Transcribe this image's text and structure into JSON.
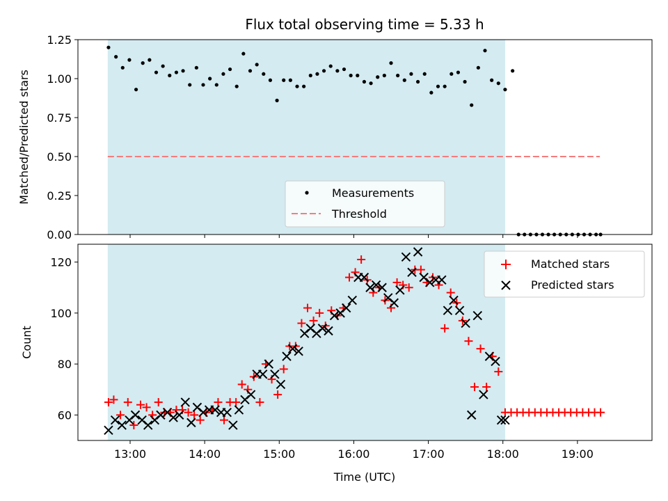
{
  "chart_data": [
    {
      "type": "scatter",
      "title": "Flux total observing time = 5.33 h",
      "ylabel": "Matched/Predicted stars",
      "xlabel": "",
      "ylim": [
        0,
        1.25
      ],
      "yticks": [
        0.0,
        0.25,
        0.5,
        0.75,
        1.0,
        1.25
      ],
      "ytick_labels": [
        "0.00",
        "0.25",
        "0.50",
        "0.75",
        "1.00",
        "1.25"
      ],
      "xlim": [
        12.3,
        20.0
      ],
      "shaded_span": {
        "start": 12.7,
        "end": 18.03
      },
      "series": [
        {
          "name": "Measurements",
          "color": "#000000",
          "x": [
            12.71,
            12.81,
            12.9,
            12.99,
            13.08,
            13.17,
            13.26,
            13.35,
            13.44,
            13.53,
            13.62,
            13.71,
            13.8,
            13.89,
            13.98,
            14.07,
            14.16,
            14.25,
            14.34,
            14.43,
            14.52,
            14.61,
            14.7,
            14.79,
            14.88,
            14.97,
            15.06,
            15.15,
            15.24,
            15.33,
            15.42,
            15.51,
            15.6,
            15.69,
            15.78,
            15.87,
            15.96,
            16.05,
            16.14,
            16.23,
            16.32,
            16.41,
            16.5,
            16.59,
            16.68,
            16.77,
            16.86,
            16.95,
            17.04,
            17.13,
            17.22,
            17.31,
            17.4,
            17.49,
            17.58,
            17.67,
            17.76,
            17.85,
            17.94,
            18.03,
            18.13,
            18.21,
            18.29,
            18.37,
            18.45,
            18.53,
            18.61,
            18.69,
            18.77,
            18.85,
            18.93,
            19.01,
            19.09,
            19.17,
            19.25,
            19.31
          ],
          "y": [
            1.2,
            1.14,
            1.07,
            1.12,
            0.93,
            1.1,
            1.12,
            1.04,
            1.08,
            1.02,
            1.04,
            1.05,
            0.96,
            1.07,
            0.96,
            1.0,
            0.96,
            1.03,
            1.06,
            0.95,
            1.16,
            1.05,
            1.09,
            1.03,
            0.99,
            0.86,
            0.99,
            0.99,
            0.95,
            0.95,
            1.02,
            1.03,
            1.05,
            1.08,
            1.05,
            1.06,
            1.02,
            1.02,
            0.98,
            0.97,
            1.01,
            1.02,
            1.1,
            1.02,
            0.99,
            1.03,
            0.98,
            1.03,
            0.91,
            0.95,
            0.95,
            1.03,
            1.04,
            0.98,
            0.83,
            1.07,
            1.18,
            0.99,
            0.97,
            0.93,
            1.05,
            0.0,
            0.0,
            0.0,
            0.0,
            0.0,
            0.0,
            0.0,
            0.0,
            0.0,
            0.0,
            0.0,
            0.0,
            0.0,
            0.0,
            0.0
          ]
        },
        {
          "name": "Threshold",
          "color": "#f57c7c",
          "style": "dashed",
          "x": [
            12.7,
            19.3
          ],
          "y": [
            0.5,
            0.5
          ]
        }
      ],
      "legend": {
        "position": "lower-center",
        "entries": [
          "Measurements",
          "Threshold"
        ]
      }
    },
    {
      "type": "scatter",
      "title": "",
      "xlabel": "Time (UTC)",
      "ylabel": "Count",
      "ylim": [
        50,
        127
      ],
      "yticks": [
        60,
        80,
        100,
        120
      ],
      "ytick_labels": [
        "60",
        "80",
        "100",
        "120"
      ],
      "xlim": [
        12.3,
        20.0
      ],
      "xticks": [
        13,
        14,
        15,
        16,
        17,
        18,
        19
      ],
      "xtick_labels": [
        "13:00",
        "14:00",
        "15:00",
        "16:00",
        "17:00",
        "18:00",
        "19:00"
      ],
      "shaded_span": {
        "start": 12.7,
        "end": 18.03
      },
      "series": [
        {
          "name": "Matched stars",
          "marker": "+",
          "color": "#ff0000",
          "x": [
            12.71,
            12.78,
            12.87,
            12.97,
            13.05,
            13.14,
            13.22,
            13.3,
            13.38,
            13.46,
            13.54,
            13.62,
            13.7,
            13.78,
            13.86,
            13.94,
            14.02,
            14.1,
            14.18,
            14.26,
            14.34,
            14.42,
            14.5,
            14.58,
            14.66,
            14.74,
            14.82,
            14.9,
            14.98,
            15.06,
            15.14,
            15.22,
            15.3,
            15.38,
            15.46,
            15.54,
            15.62,
            15.7,
            15.78,
            15.86,
            15.94,
            16.02,
            16.1,
            16.18,
            16.26,
            16.34,
            16.42,
            16.5,
            16.58,
            16.66,
            16.74,
            16.82,
            16.9,
            16.98,
            17.06,
            17.14,
            17.22,
            17.3,
            17.38,
            17.46,
            17.54,
            17.62,
            17.7,
            17.78,
            17.86,
            17.94,
            18.03,
            18.11,
            18.19,
            18.27,
            18.35,
            18.43,
            18.51,
            18.59,
            18.67,
            18.75,
            18.83,
            18.91,
            18.99,
            19.07,
            19.15,
            19.23,
            19.31
          ],
          "y": [
            65,
            66,
            60,
            65,
            56,
            64,
            63,
            60,
            65,
            61,
            61,
            62,
            62,
            61,
            60,
            58,
            61,
            62,
            65,
            58,
            65,
            65,
            72,
            70,
            75,
            65,
            80,
            74,
            68,
            78,
            87,
            87,
            96,
            102,
            97,
            100,
            95,
            101,
            99,
            102,
            114,
            116,
            121,
            113,
            108,
            110,
            105,
            102,
            112,
            111,
            110,
            117,
            117,
            112,
            114,
            111,
            94,
            108,
            104,
            97,
            89,
            71,
            86,
            71,
            83,
            77,
            61,
            61,
            61,
            61,
            61,
            61,
            61,
            61,
            61,
            61,
            61,
            61,
            61,
            61,
            61,
            61,
            61
          ]
        },
        {
          "name": "Predicted stars",
          "marker": "x",
          "color": "#000000",
          "x": [
            12.71,
            12.8,
            12.89,
            12.99,
            13.07,
            13.16,
            13.24,
            13.33,
            13.41,
            13.5,
            13.58,
            13.66,
            13.74,
            13.82,
            13.9,
            13.98,
            14.06,
            14.14,
            14.22,
            14.3,
            14.38,
            14.46,
            14.54,
            14.62,
            14.7,
            14.78,
            14.86,
            14.94,
            15.02,
            15.1,
            15.18,
            15.26,
            15.34,
            15.42,
            15.5,
            15.58,
            15.66,
            15.74,
            15.82,
            15.9,
            15.98,
            16.06,
            16.14,
            16.22,
            16.3,
            16.38,
            16.46,
            16.54,
            16.62,
            16.7,
            16.78,
            16.86,
            16.94,
            17.02,
            17.1,
            17.18,
            17.26,
            17.34,
            17.42,
            17.5,
            17.58,
            17.66,
            17.74,
            17.82,
            17.9,
            17.98,
            18.03
          ],
          "y": [
            54,
            58,
            56,
            58,
            60,
            58,
            56,
            58,
            60,
            61,
            59,
            60,
            65,
            57,
            63,
            61,
            62,
            62,
            61,
            61,
            56,
            62,
            66,
            68,
            76,
            76,
            80,
            76,
            72,
            83,
            86,
            85,
            92,
            94,
            92,
            94,
            93,
            99,
            100,
            102,
            105,
            114,
            114,
            110,
            111,
            110,
            106,
            104,
            109,
            122,
            116,
            124,
            114,
            112,
            113,
            113,
            101,
            105,
            101,
            96,
            60,
            99,
            68,
            83,
            81,
            58,
            58
          ]
        }
      ],
      "legend": {
        "position": "top-right",
        "entries": [
          "Matched stars",
          "Predicted stars"
        ]
      }
    }
  ]
}
